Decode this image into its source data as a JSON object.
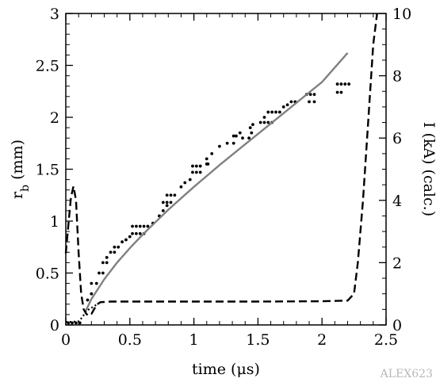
{
  "chart_data": {
    "type": "scatter",
    "xlabel": "time (μs)",
    "ylabel_left_main": "r",
    "ylabel_left_sub": "b",
    "ylabel_left_unit": " (mm)",
    "ylabel_right": "I (kA) (calc.)",
    "xlim": [
      0,
      2.5
    ],
    "ylim_left": [
      0,
      3
    ],
    "ylim_right": [
      0,
      10
    ],
    "x_ticks": [
      0,
      0.5,
      1,
      1.5,
      2,
      2.5
    ],
    "x_tick_labels": [
      "0",
      "0.5",
      "1",
      "1.5",
      "2",
      "2.5"
    ],
    "y_left_ticks": [
      0,
      0.5,
      1,
      1.5,
      2,
      2.5,
      3
    ],
    "y_left_tick_labels": [
      "0",
      "0.5",
      "1",
      "1.5",
      "2",
      "2.5",
      "3"
    ],
    "y_right_ticks": [
      0,
      2,
      4,
      6,
      8,
      10
    ],
    "y_right_tick_labels": [
      "0",
      "2",
      "4",
      "6",
      "8",
      "10"
    ],
    "series": [
      {
        "style": "scatter-dots",
        "axis": "left",
        "color": "#000000",
        "points": [
          [
            0.02,
            0.02
          ],
          [
            0.05,
            0.02
          ],
          [
            0.08,
            0.02
          ],
          [
            0.11,
            0.02
          ],
          [
            0.17,
            0.24
          ],
          [
            0.2,
            0.3
          ],
          [
            0.2,
            0.4
          ],
          [
            0.24,
            0.4
          ],
          [
            0.26,
            0.5
          ],
          [
            0.29,
            0.5
          ],
          [
            0.29,
            0.6
          ],
          [
            0.32,
            0.6
          ],
          [
            0.32,
            0.65
          ],
          [
            0.35,
            0.7
          ],
          [
            0.38,
            0.7
          ],
          [
            0.38,
            0.75
          ],
          [
            0.41,
            0.75
          ],
          [
            0.44,
            0.8
          ],
          [
            0.47,
            0.82
          ],
          [
            0.5,
            0.85
          ],
          [
            0.52,
            0.88
          ],
          [
            0.55,
            0.88
          ],
          [
            0.58,
            0.88
          ],
          [
            0.61,
            0.88
          ],
          [
            0.64,
            0.95
          ],
          [
            0.61,
            0.95
          ],
          [
            0.58,
            0.95
          ],
          [
            0.55,
            0.95
          ],
          [
            0.52,
            0.95
          ],
          [
            0.68,
            0.98
          ],
          [
            0.73,
            1.05
          ],
          [
            0.76,
            1.1
          ],
          [
            0.79,
            1.15
          ],
          [
            0.82,
            1.18
          ],
          [
            0.79,
            1.18
          ],
          [
            0.76,
            1.18
          ],
          [
            0.85,
            1.25
          ],
          [
            0.82,
            1.25
          ],
          [
            0.79,
            1.25
          ],
          [
            0.9,
            1.33
          ],
          [
            0.93,
            1.37
          ],
          [
            0.97,
            1.4
          ],
          [
            0.99,
            1.47
          ],
          [
            1.02,
            1.47
          ],
          [
            1.05,
            1.47
          ],
          [
            0.99,
            1.53
          ],
          [
            1.02,
            1.53
          ],
          [
            1.05,
            1.53
          ],
          [
            1.1,
            1.6
          ],
          [
            1.1,
            1.55
          ],
          [
            1.11,
            1.55
          ],
          [
            1.14,
            1.65
          ],
          [
            1.2,
            1.72
          ],
          [
            1.26,
            1.75
          ],
          [
            1.31,
            1.75
          ],
          [
            1.31,
            1.82
          ],
          [
            1.33,
            1.82
          ],
          [
            1.36,
            1.85
          ],
          [
            1.38,
            1.8
          ],
          [
            1.43,
            1.8
          ],
          [
            1.45,
            1.85
          ],
          [
            1.44,
            1.9
          ],
          [
            1.46,
            1.93
          ],
          [
            1.52,
            1.95
          ],
          [
            1.55,
            1.95
          ],
          [
            1.58,
            1.95
          ],
          [
            1.61,
            1.95
          ],
          [
            1.55,
            2.0
          ],
          [
            1.58,
            2.05
          ],
          [
            1.61,
            2.05
          ],
          [
            1.64,
            2.05
          ],
          [
            1.67,
            2.05
          ],
          [
            1.7,
            2.1
          ],
          [
            1.73,
            2.12
          ],
          [
            1.76,
            2.15
          ],
          [
            1.79,
            2.15
          ],
          [
            1.88,
            2.22
          ],
          [
            1.91,
            2.22
          ],
          [
            1.94,
            2.22
          ],
          [
            1.9,
            2.15
          ],
          [
            1.94,
            2.15
          ],
          [
            2.12,
            2.24
          ],
          [
            2.15,
            2.24
          ],
          [
            2.12,
            2.32
          ],
          [
            2.15,
            2.32
          ],
          [
            2.18,
            2.32
          ],
          [
            2.21,
            2.32
          ]
        ]
      },
      {
        "style": "solid-gray",
        "axis": "left",
        "color": "#808080",
        "points": [
          [
            0.15,
            0.12
          ],
          [
            0.2,
            0.25
          ],
          [
            0.3,
            0.44
          ],
          [
            0.4,
            0.6
          ],
          [
            0.5,
            0.74
          ],
          [
            0.6,
            0.87
          ],
          [
            0.7,
            0.99
          ],
          [
            0.8,
            1.11
          ],
          [
            0.9,
            1.22
          ],
          [
            1.0,
            1.33
          ],
          [
            1.2,
            1.54
          ],
          [
            1.4,
            1.74
          ],
          [
            1.6,
            1.94
          ],
          [
            1.8,
            2.14
          ],
          [
            2.0,
            2.34
          ],
          [
            2.2,
            2.62
          ]
        ]
      },
      {
        "style": "dashed-black",
        "axis": "right",
        "color": "#000000",
        "points": [
          [
            0.0,
            2.3
          ],
          [
            0.02,
            3.2
          ],
          [
            0.04,
            4.1
          ],
          [
            0.06,
            4.45
          ],
          [
            0.08,
            4.0
          ],
          [
            0.1,
            2.3
          ],
          [
            0.12,
            1.0
          ],
          [
            0.14,
            0.5
          ],
          [
            0.16,
            0.35
          ],
          [
            0.18,
            0.3
          ],
          [
            0.2,
            0.35
          ],
          [
            0.22,
            0.5
          ],
          [
            0.24,
            0.65
          ],
          [
            0.27,
            0.73
          ],
          [
            0.35,
            0.75
          ],
          [
            0.6,
            0.75
          ],
          [
            1.0,
            0.75
          ],
          [
            1.5,
            0.75
          ],
          [
            2.0,
            0.76
          ],
          [
            2.2,
            0.78
          ],
          [
            2.25,
            1.0
          ],
          [
            2.28,
            2.0
          ],
          [
            2.32,
            4.0
          ],
          [
            2.36,
            6.5
          ],
          [
            2.4,
            9.0
          ],
          [
            2.43,
            10.0
          ]
        ]
      },
      {
        "style": "dotted-black",
        "axis": "right",
        "color": "#000000",
        "points": [
          [
            0.0,
            0.1
          ],
          [
            0.05,
            0.1
          ],
          [
            0.1,
            0.12
          ],
          [
            0.13,
            0.25
          ],
          [
            0.16,
            0.45
          ],
          [
            0.2,
            0.55
          ],
          [
            0.24,
            0.65
          ]
        ]
      }
    ]
  },
  "watermark": "ALEX623"
}
